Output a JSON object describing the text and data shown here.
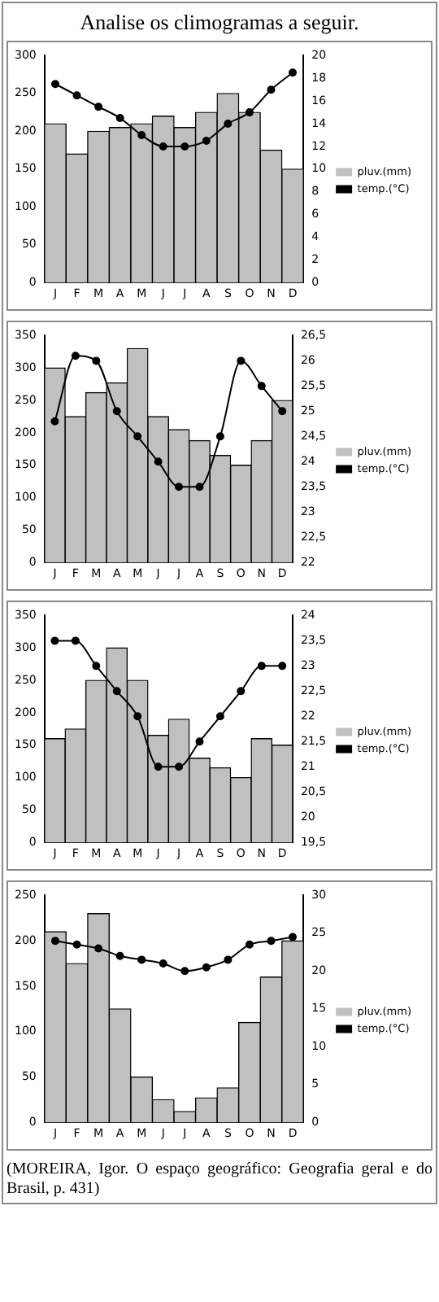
{
  "chart_data": [
    {
      "type": "bar",
      "title": "Analise os climogramas a seguir.",
      "categories": [
        "J",
        "F",
        "M",
        "A",
        "M",
        "J",
        "J",
        "A",
        "S",
        "O",
        "N",
        "D"
      ],
      "series": [
        {
          "name": "pluv.(mm)",
          "color": "#c0c0c0",
          "values": [
            210,
            170,
            200,
            205,
            210,
            220,
            205,
            225,
            250,
            225,
            175,
            150
          ]
        },
        {
          "name": "temp.(°C)",
          "type": "line",
          "axis": "y2",
          "color": "#000000",
          "marker": "circle",
          "line_style": "solid",
          "values": [
            17.5,
            16.5,
            15.5,
            14.5,
            13,
            12,
            12,
            12.5,
            14,
            15,
            17,
            18.5
          ]
        }
      ],
      "ylim": [
        0,
        300
      ],
      "yticks": [
        0,
        50,
        100,
        150,
        200,
        250,
        300
      ],
      "y2lim": [
        0,
        20
      ],
      "y2ticks": [
        0,
        2,
        4,
        6,
        8,
        10,
        12,
        14,
        16,
        18,
        20
      ],
      "legend": "right",
      "grid": false
    },
    {
      "type": "bar",
      "categories": [
        "J",
        "F",
        "M",
        "A",
        "M",
        "J",
        "J",
        "A",
        "S",
        "O",
        "N",
        "D"
      ],
      "series": [
        {
          "name": "pluv.(mm)",
          "color": "#c0c0c0",
          "values": [
            300,
            225,
            262,
            277,
            330,
            225,
            205,
            188,
            165,
            150,
            188,
            250
          ]
        },
        {
          "name": "temp.(°C)",
          "type": "line",
          "axis": "y2",
          "color": "#000000",
          "marker": "circle",
          "line_style": "solid",
          "values": [
            24.8,
            26.1,
            26,
            25,
            24.5,
            24,
            23.5,
            23.5,
            24.5,
            26,
            25.5,
            25
          ]
        }
      ],
      "ylim": [
        0,
        350
      ],
      "yticks": [
        0,
        50,
        100,
        150,
        200,
        250,
        300,
        350
      ],
      "y2lim": [
        22,
        26.5
      ],
      "y2ticks": [
        22,
        {
          "value": 22.5,
          "label": "22,5"
        },
        23,
        {
          "value": 23.5,
          "label": "23,5"
        },
        24,
        {
          "value": 24.5,
          "label": "24,5"
        },
        25,
        {
          "value": 25.5,
          "label": "25,5"
        },
        26,
        {
          "value": 26.5,
          "label": "26,5"
        }
      ],
      "legend": "right",
      "grid": false
    },
    {
      "type": "bar",
      "categories": [
        "J",
        "F",
        "M",
        "A",
        "M",
        "J",
        "J",
        "A",
        "S",
        "O",
        "N",
        "D"
      ],
      "series": [
        {
          "name": "pluv.(mm)",
          "color": "#c0c0c0",
          "values": [
            160,
            175,
            250,
            300,
            250,
            165,
            190,
            130,
            115,
            100,
            160,
            150
          ]
        },
        {
          "name": "temp.(°C)",
          "type": "line",
          "axis": "y2",
          "color": "#000000",
          "marker": "circle",
          "line_style": "solid",
          "values": [
            23.5,
            23.5,
            23,
            22.5,
            22,
            21,
            21,
            21.5,
            22,
            22.5,
            23,
            23
          ]
        }
      ],
      "ylim": [
        0,
        350
      ],
      "yticks": [
        0,
        50,
        100,
        150,
        200,
        250,
        300,
        350
      ],
      "y2lim": [
        19.5,
        24
      ],
      "y2ticks": [
        {
          "value": 19.5,
          "label": "19,5"
        },
        20,
        {
          "value": 20.5,
          "label": "20,5"
        },
        21,
        {
          "value": 21.5,
          "label": "21,5"
        },
        22,
        {
          "value": 22.5,
          "label": "22,5"
        },
        23,
        {
          "value": 23.5,
          "label": "23,5"
        },
        24
      ],
      "legend": "right",
      "grid": false
    },
    {
      "type": "bar",
      "categories": [
        "J",
        "F",
        "M",
        "A",
        "M",
        "J",
        "J",
        "A",
        "S",
        "O",
        "N",
        "D"
      ],
      "series": [
        {
          "name": "pluv.(mm)",
          "color": "#c0c0c0",
          "values": [
            210,
            175,
            230,
            125,
            50,
            25,
            12,
            27,
            38,
            110,
            160,
            200
          ]
        },
        {
          "name": "temp.(°C)",
          "type": "line",
          "axis": "y2",
          "color": "#000000",
          "marker": "circle",
          "line_style": "solid",
          "values": [
            24,
            23.5,
            23,
            22,
            21.5,
            21,
            20,
            20.5,
            21.5,
            23.5,
            24,
            24.5
          ]
        }
      ],
      "ylim": [
        0,
        250
      ],
      "yticks": [
        0,
        50,
        100,
        150,
        200,
        250
      ],
      "y2lim": [
        0,
        30
      ],
      "y2ticks": [
        0,
        5,
        10,
        15,
        20,
        25,
        30
      ],
      "legend": "right",
      "grid": false,
      "annotations": [
        "(MOREIRA, Igor. O espaço geográfico: Geografia geral e do Brasil, p. 431)"
      ]
    }
  ]
}
